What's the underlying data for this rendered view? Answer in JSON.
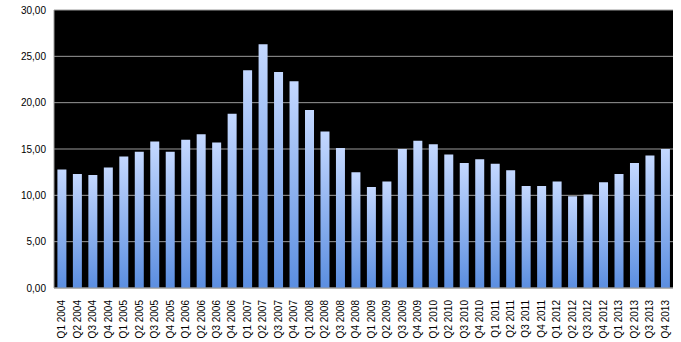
{
  "chart_data": {
    "type": "bar",
    "categories": [
      "Q1 2004",
      "Q2 2004",
      "Q3 2004",
      "Q4 2004",
      "Q1 2005",
      "Q2 2005",
      "Q3 2005",
      "Q4 2005",
      "Q1 2006",
      "Q2 2006",
      "Q3 2006",
      "Q4 2006",
      "Q1 2007",
      "Q2 2007",
      "Q3 2007",
      "Q4 2007",
      "Q1 2008",
      "Q2 2008",
      "Q3 2008",
      "Q4 2008",
      "Q1 2009",
      "Q2 2009",
      "Q3 2009",
      "Q4 2009",
      "Q1 2010",
      "Q2 2010",
      "Q3 2010",
      "Q4 2010",
      "Q1 2011",
      "Q2 2011",
      "Q3 2011",
      "Q4 2011",
      "Q1 2012",
      "Q2 2012",
      "Q3 2012",
      "Q4 2012",
      "Q1 2013",
      "Q2 2013",
      "Q3 2013",
      "Q4 2013"
    ],
    "values": [
      12.8,
      12.3,
      12.2,
      13.0,
      14.2,
      14.7,
      15.8,
      14.7,
      16.0,
      16.6,
      15.7,
      18.8,
      23.5,
      26.3,
      23.3,
      22.3,
      19.2,
      16.9,
      15.1,
      12.5,
      10.9,
      11.5,
      15.0,
      15.9,
      15.5,
      14.4,
      13.5,
      13.9,
      13.4,
      12.7,
      11.0,
      11.0,
      11.5,
      9.9,
      10.1,
      11.4,
      12.3,
      13.5,
      14.3,
      15.0
    ],
    "color": "#5b8ee0",
    "ylim": [
      0,
      30
    ],
    "yticks": [
      {
        "value": 0,
        "label": "0,00"
      },
      {
        "value": 5,
        "label": "5,00"
      },
      {
        "value": 10,
        "label": "10,00"
      },
      {
        "value": 15,
        "label": "15,00"
      },
      {
        "value": 20,
        "label": "20,00"
      },
      {
        "value": 25,
        "label": "25,00"
      },
      {
        "value": 30,
        "label": "30,00"
      }
    ],
    "grid": true
  }
}
